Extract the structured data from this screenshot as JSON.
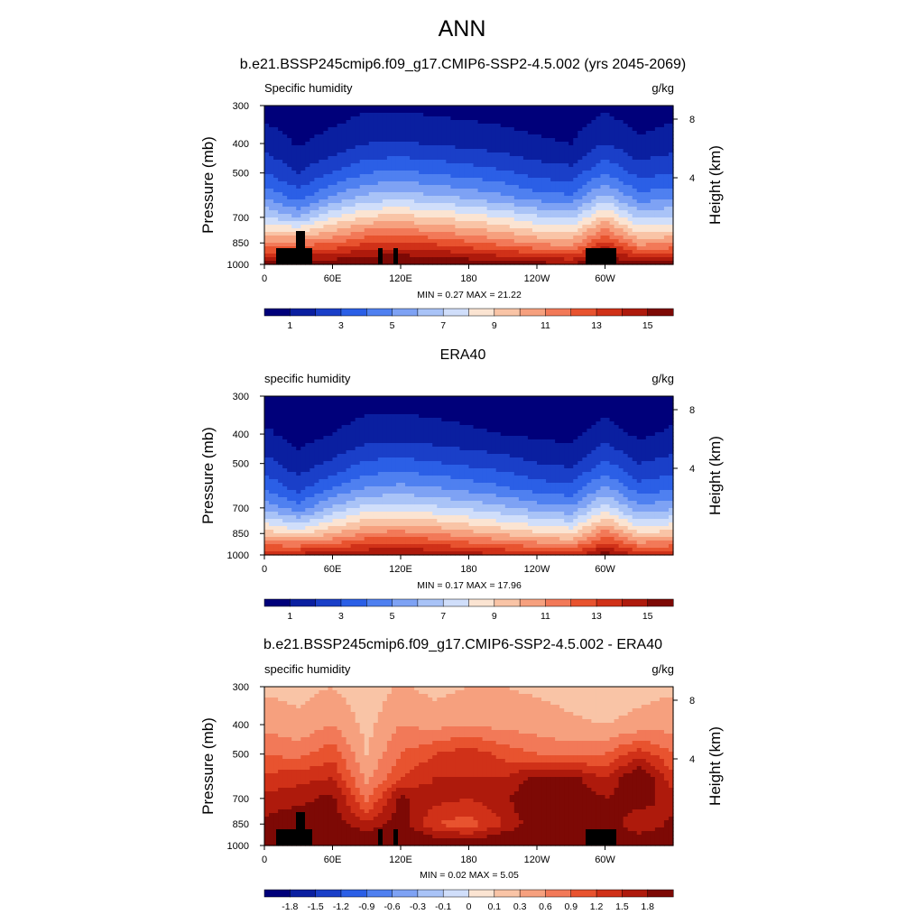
{
  "main_title": "ANN",
  "colors": [
    "#00007a",
    "#0a1fa0",
    "#1a3fc8",
    "#2b5fe6",
    "#4f80f0",
    "#7ea2f4",
    "#a9c3f7",
    "#d0defa",
    "#fbe4d2",
    "#f9c4a6",
    "#f6a07e",
    "#f27958",
    "#e8532f",
    "#d03118",
    "#ae1a0c",
    "#7d0905"
  ],
  "panels": [
    {
      "title": "b.e21.BSSP245cmip6.f09_g17.CMIP6-SSP2-4.5.002 (yrs 2045-2069)",
      "left_label": "Specific humidity",
      "right_label": "g/kg",
      "ylabel": "Pressure (mb)",
      "y2label": "Height (km)",
      "yticks": [
        "300",
        "400",
        "500",
        "700",
        "850",
        "1000"
      ],
      "y2ticks": [
        "8",
        "4"
      ],
      "xticks": [
        "0",
        "60E",
        "120E",
        "180",
        "120W",
        "60W"
      ],
      "minmax": "MIN =   0.27  MAX =   21.22",
      "colorbar_labels": [
        "1",
        "3",
        "5",
        "7",
        "9",
        "11",
        "13",
        "15"
      ]
    },
    {
      "title": "ERA40",
      "left_label": "specific humidity",
      "right_label": "g/kg",
      "ylabel": "Pressure (mb)",
      "y2label": "Height (km)",
      "yticks": [
        "300",
        "400",
        "500",
        "700",
        "850",
        "1000"
      ],
      "y2ticks": [
        "8",
        "4"
      ],
      "xticks": [
        "0",
        "60E",
        "120E",
        "180",
        "120W",
        "60W"
      ],
      "minmax": "MIN =   0.17  MAX =   17.96",
      "colorbar_labels": [
        "1",
        "3",
        "5",
        "7",
        "9",
        "11",
        "13",
        "15"
      ]
    },
    {
      "title": "b.e21.BSSP245cmip6.f09_g17.CMIP6-SSP2-4.5.002 - ERA40",
      "left_label": "specific humidity",
      "right_label": "g/kg",
      "ylabel": "Pressure (mb)",
      "y2label": "Height (km)",
      "yticks": [
        "300",
        "400",
        "500",
        "700",
        "850",
        "1000"
      ],
      "y2ticks": [
        "8",
        "4"
      ],
      "xticks": [
        "0",
        "60E",
        "120E",
        "180",
        "120W",
        "60W"
      ],
      "minmax": "MIN =   0.02  MAX =   5.05",
      "colorbar_labels": [
        "-1.8",
        "-1.5",
        "-1.2",
        "-0.9",
        "-0.6",
        "-0.3",
        "-0.1",
        "0",
        "0.1",
        "0.3",
        "0.6",
        "0.9",
        "1.2",
        "1.5",
        "1.8"
      ]
    }
  ],
  "chart_data": [
    {
      "type": "heatmap",
      "title": "b.e21.BSSP245cmip6.f09_g17.CMIP6-SSP2-4.5.002 (yrs 2045-2069)",
      "variable": "Specific humidity",
      "units": "g/kg",
      "xlabel": "",
      "ylabel": "Pressure (mb)",
      "y2label": "Height (km)",
      "xlim": [
        0,
        360
      ],
      "ylim": [
        1000,
        300
      ],
      "min": 0.27,
      "max": 21.22,
      "levels": [
        1,
        2,
        3,
        4,
        5,
        6,
        7,
        8,
        9,
        10,
        11,
        12,
        13,
        14,
        15
      ],
      "pressure_levels": [
        300,
        400,
        500,
        600,
        700,
        850,
        1000
      ],
      "longitudes": [
        0,
        30,
        60,
        90,
        120,
        150,
        180,
        210,
        240,
        270,
        300,
        330
      ],
      "values": [
        [
          0.6,
          0.3,
          0.5,
          0.8,
          0.8,
          0.7,
          0.6,
          0.5,
          0.4,
          0.3,
          0.8,
          0.4
        ],
        [
          1.6,
          0.9,
          1.4,
          2.0,
          2.1,
          1.9,
          1.7,
          1.5,
          1.2,
          1.0,
          2.0,
          1.2
        ],
        [
          3.0,
          2.0,
          3.0,
          4.0,
          4.2,
          3.9,
          3.6,
          3.2,
          2.6,
          2.4,
          4.0,
          2.6
        ],
        [
          4.8,
          3.6,
          5.2,
          6.3,
          6.6,
          6.2,
          5.8,
          5.2,
          4.5,
          4.2,
          6.4,
          4.4
        ],
        [
          7.2,
          6.0,
          8.0,
          9.2,
          9.4,
          9.0,
          8.6,
          8.0,
          7.2,
          6.8,
          9.4,
          6.8
        ],
        [
          11.0,
          11.5,
          12.0,
          13.0,
          13.2,
          12.8,
          12.2,
          11.6,
          10.8,
          10.5,
          13.5,
          10.6
        ],
        [
          15.5,
          16.0,
          16.0,
          16.5,
          16.5,
          16.5,
          16.0,
          15.8,
          15.5,
          15.2,
          16.5,
          15.5
        ]
      ]
    },
    {
      "type": "heatmap",
      "title": "ERA40",
      "variable": "specific humidity",
      "units": "g/kg",
      "xlabel": "",
      "ylabel": "Pressure (mb)",
      "y2label": "Height (km)",
      "xlim": [
        0,
        360
      ],
      "ylim": [
        1000,
        300
      ],
      "min": 0.17,
      "max": 17.96,
      "levels": [
        1,
        2,
        3,
        4,
        5,
        6,
        7,
        8,
        9,
        10,
        11,
        12,
        13,
        14,
        15
      ],
      "pressure_levels": [
        300,
        400,
        500,
        600,
        700,
        850,
        1000
      ],
      "longitudes": [
        0,
        30,
        60,
        90,
        120,
        150,
        180,
        210,
        240,
        270,
        300,
        330
      ],
      "values": [
        [
          0.4,
          0.2,
          0.3,
          0.6,
          0.6,
          0.5,
          0.4,
          0.3,
          0.2,
          0.2,
          0.5,
          0.2
        ],
        [
          1.2,
          0.6,
          1.0,
          1.5,
          1.6,
          1.4,
          1.2,
          1.0,
          0.8,
          0.7,
          1.5,
          0.8
        ],
        [
          2.4,
          1.4,
          2.2,
          3.2,
          3.4,
          3.1,
          2.8,
          2.5,
          2.0,
          1.8,
          3.2,
          2.0
        ],
        [
          3.8,
          2.6,
          4.0,
          5.0,
          5.3,
          5.0,
          4.6,
          4.1,
          3.5,
          3.2,
          5.2,
          3.4
        ],
        [
          5.8,
          4.4,
          6.2,
          7.4,
          7.6,
          7.2,
          6.8,
          6.2,
          5.6,
          5.2,
          7.6,
          5.3
        ],
        [
          9.5,
          8.8,
          10.0,
          11.2,
          11.4,
          11.0,
          10.4,
          9.8,
          9.2,
          8.8,
          11.6,
          9.0
        ],
        [
          14.0,
          14.5,
          14.5,
          15.0,
          15.2,
          15.0,
          14.5,
          14.2,
          13.8,
          13.5,
          15.5,
          14.0
        ]
      ]
    },
    {
      "type": "heatmap",
      "title": "b.e21.BSSP245cmip6.f09_g17.CMIP6-SSP2-4.5.002 - ERA40",
      "variable": "specific humidity",
      "units": "g/kg",
      "xlabel": "",
      "ylabel": "Pressure (mb)",
      "y2label": "Height (km)",
      "xlim": [
        0,
        360
      ],
      "ylim": [
        1000,
        300
      ],
      "min": 0.02,
      "max": 5.05,
      "levels": [
        -1.8,
        -1.5,
        -1.2,
        -0.9,
        -0.6,
        -0.3,
        -0.1,
        0,
        0.1,
        0.3,
        0.6,
        0.9,
        1.2,
        1.5,
        1.8
      ],
      "pressure_levels": [
        300,
        400,
        500,
        600,
        700,
        850,
        1000
      ],
      "longitudes": [
        0,
        30,
        60,
        90,
        120,
        150,
        180,
        210,
        240,
        270,
        300,
        330
      ],
      "values": [
        [
          0.25,
          0.2,
          0.3,
          0.1,
          0.35,
          0.2,
          0.3,
          0.3,
          0.25,
          0.2,
          0.1,
          0.2
        ],
        [
          0.5,
          0.4,
          0.6,
          0.2,
          0.6,
          0.5,
          0.6,
          0.5,
          0.45,
          0.35,
          0.3,
          0.4
        ],
        [
          0.9,
          0.8,
          1.1,
          0.3,
          0.9,
          1.2,
          1.4,
          1.1,
          0.9,
          0.8,
          0.9,
          1.4
        ],
        [
          1.3,
          1.4,
          1.5,
          0.5,
          1.2,
          1.5,
          1.5,
          1.5,
          1.9,
          1.9,
          1.5,
          2.2
        ],
        [
          1.6,
          1.7,
          1.9,
          0.8,
          1.9,
          1.6,
          1.5,
          1.7,
          2.2,
          2.2,
          1.8,
          2.0
        ],
        [
          1.9,
          2.1,
          2.0,
          1.6,
          2.0,
          1.2,
          1.0,
          1.5,
          2.0,
          2.0,
          2.1,
          1.5
        ],
        [
          2.2,
          2.5,
          2.4,
          2.2,
          2.3,
          2.2,
          2.2,
          2.3,
          2.3,
          2.2,
          2.4,
          2.2
        ]
      ]
    }
  ]
}
